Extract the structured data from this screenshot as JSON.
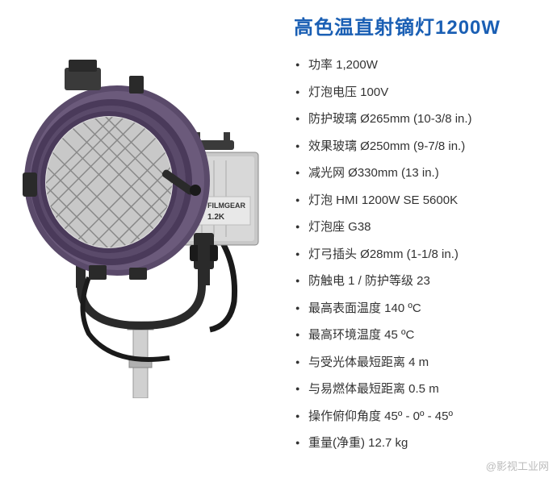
{
  "title": "高色温直射镝灯1200W",
  "title_color": "#1a5fb4",
  "title_fontsize": 24,
  "specs": [
    "功率 1,200W",
    "灯泡电压 100V",
    "防护玻璃 Ø265mm (10-3/8 in.)",
    "效果玻璃 Ø250mm (9-7/8 in.)",
    "减光网 Ø330mm (13 in.)",
    "灯泡 HMI 1200W SE 5600K",
    "灯泡座 G38",
    "灯弓插头 Ø28mm (1-1/8 in.)",
    "防触电 1 / 防护等级 23",
    "最高表面温度 140 ºC",
    "最高环境温度 45 ºC",
    "与受光体最短距离 4 m",
    "与易燃体最短距离 0.5 m",
    "操作俯仰角度 45º - 0º - 45º",
    "重量(净重) 12.7 kg"
  ],
  "spec_color": "#333333",
  "spec_fontsize": 15,
  "watermark": "@影视工业网",
  "watermark_color": "#bbbbbb",
  "image": {
    "type": "product-illustration",
    "description": "HMI studio light fixture",
    "colors": {
      "housing_purple": "#5a4a6a",
      "housing_light_purple": "#6b5a7b",
      "metal_silver": "#c8c8c8",
      "metal_dark": "#888888",
      "black": "#2a2a2a",
      "mesh_gray": "#a0a0a0",
      "stand_silver": "#d0d0d0",
      "brand_orange": "#e68a3a",
      "brand_text": "#333333"
    },
    "brand_label": "FILMGEAR",
    "brand_sublabel": "1.2K"
  }
}
